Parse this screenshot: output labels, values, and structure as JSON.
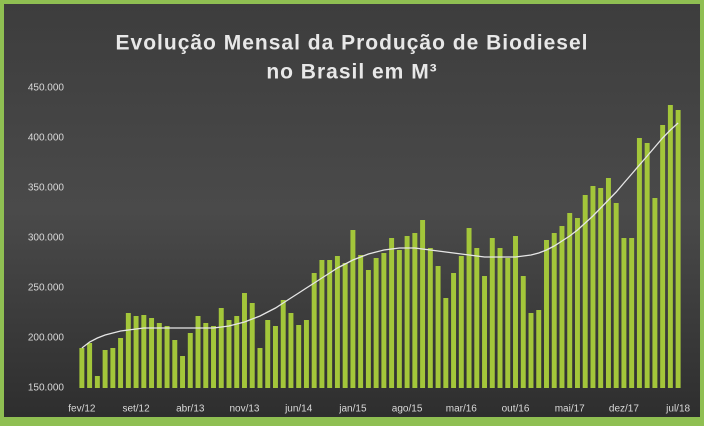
{
  "chart_data": {
    "type": "bar",
    "title": [
      "Evolução Mensal da Produção de Biodiesel",
      "no Brasil em M³"
    ],
    "categories": [
      "fev/12",
      null,
      null,
      null,
      null,
      null,
      null,
      "set/12",
      null,
      null,
      null,
      null,
      null,
      null,
      "abr/13",
      null,
      null,
      null,
      null,
      null,
      null,
      "nov/13",
      null,
      null,
      null,
      null,
      null,
      null,
      "jun/14",
      null,
      null,
      null,
      null,
      null,
      null,
      "jan/15",
      null,
      null,
      null,
      null,
      null,
      null,
      "ago/15",
      null,
      null,
      null,
      null,
      null,
      null,
      "mar/16",
      null,
      null,
      null,
      null,
      null,
      null,
      "out/16",
      null,
      null,
      null,
      null,
      null,
      null,
      "mai/17",
      null,
      null,
      null,
      null,
      null,
      null,
      "dez/17",
      null,
      null,
      null,
      null,
      null,
      null,
      "jul/18"
    ],
    "values": [
      190000,
      195000,
      162000,
      188000,
      190000,
      200000,
      225000,
      222000,
      223000,
      220000,
      215000,
      212000,
      198000,
      182000,
      205000,
      222000,
      215000,
      212000,
      230000,
      218000,
      222000,
      245000,
      235000,
      190000,
      218000,
      212000,
      238000,
      225000,
      213000,
      218000,
      265000,
      278000,
      278000,
      282000,
      275000,
      308000,
      283000,
      268000,
      280000,
      285000,
      300000,
      288000,
      302000,
      305000,
      318000,
      290000,
      272000,
      240000,
      265000,
      282000,
      310000,
      290000,
      262000,
      300000,
      290000,
      280000,
      302000,
      262000,
      225000,
      228000,
      298000,
      305000,
      312000,
      325000,
      320000,
      343000,
      352000,
      350000,
      360000,
      335000,
      300000,
      300000,
      400000,
      395000,
      340000,
      413000,
      433000,
      428000
    ],
    "color": "#a3c63a",
    "trendline": {
      "color": "#e6e6e6",
      "values": [
        190000,
        196000,
        200000,
        203000,
        205000,
        207000,
        208000,
        209000,
        210000,
        210000,
        210000,
        210000,
        210000,
        210000,
        210000,
        210000,
        210000,
        210000,
        211000,
        212000,
        214000,
        216000,
        219000,
        222000,
        226000,
        230000,
        235000,
        240000,
        245000,
        250000,
        255000,
        260000,
        265000,
        270000,
        274000,
        278000,
        281000,
        284000,
        286000,
        288000,
        289000,
        290000,
        290000,
        290000,
        289000,
        288000,
        287000,
        286000,
        285000,
        284000,
        283000,
        282000,
        281000,
        281000,
        281000,
        281000,
        281000,
        282000,
        283000,
        285000,
        288000,
        292000,
        297000,
        302000,
        308000,
        315000,
        322000,
        330000,
        338000,
        346000,
        355000,
        364000,
        373000,
        382000,
        391000,
        400000,
        408000,
        415000
      ]
    },
    "ylim": [
      150000,
      450000
    ],
    "yticks": [
      {
        "value": 150000,
        "label": "150.000"
      },
      {
        "value": 200000,
        "label": "200.000"
      },
      {
        "value": 250000,
        "label": "250.000"
      },
      {
        "value": 300000,
        "label": "300.000"
      },
      {
        "value": 350000,
        "label": "350.000"
      },
      {
        "value": 400000,
        "label": "400.000"
      },
      {
        "value": 450000,
        "label": "450.000"
      }
    ],
    "grid": false
  }
}
